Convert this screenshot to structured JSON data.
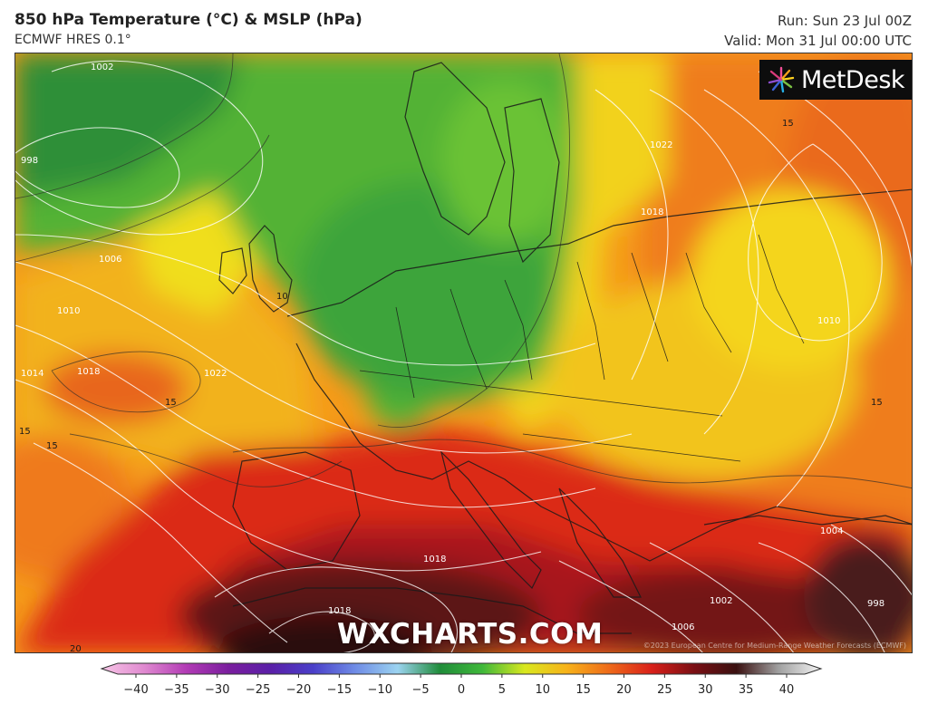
{
  "header": {
    "title": "850 hPa Temperature (°C) & MSLP (hPa)",
    "model": "ECMWF HRES 0.1°",
    "run": "Run: Sun 23 Jul 00Z",
    "valid": "Valid: Mon 31 Jul 00:00 UTC"
  },
  "logo": {
    "text": "MetDesk"
  },
  "watermark": "WXCHARTS.COM",
  "copyright": "©2023 European Centre for Medium-Range Weather Forecasts (ECMWF)",
  "map": {
    "isobar_labels": [
      "1002",
      "998",
      "1006",
      "1010",
      "1014",
      "1018",
      "1022",
      "1018",
      "1018",
      "1006",
      "1002",
      "1004",
      "998",
      "1010",
      "1018",
      "1022"
    ],
    "temperature_labels": [
      "10",
      "15",
      "15",
      "15",
      "15",
      "15",
      "20"
    ]
  },
  "colorbar": {
    "ticks": [
      "-40",
      "-35",
      "-30",
      "-25",
      "-20",
      "-15",
      "-10",
      "-5",
      "0",
      "5",
      "10",
      "15",
      "20",
      "25",
      "30",
      "35",
      "40"
    ],
    "stops": [
      "#f7c6e6",
      "#e08ad0",
      "#b23bb5",
      "#7a1e9e",
      "#5a1fa8",
      "#4a3fc9",
      "#6f8ce6",
      "#9bd3f0",
      "#1f8c3a",
      "#3fb83a",
      "#d9e81f",
      "#f7b21a",
      "#ee6a1a",
      "#d9201a",
      "#7a0f14",
      "#3a1010",
      "#a0a0a0",
      "#f5f5f5"
    ]
  }
}
